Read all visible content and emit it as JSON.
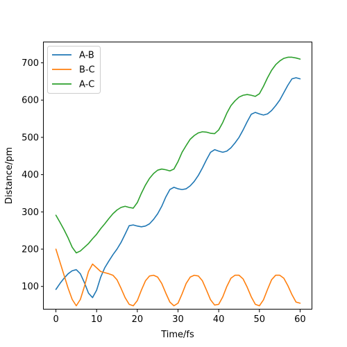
{
  "chart_data": {
    "type": "line",
    "title": "",
    "xlabel": "Time/fs",
    "ylabel": "Distance/pm",
    "xlim": [
      -3,
      63
    ],
    "ylim": [
      38,
      755
    ],
    "xticks": [
      0,
      10,
      20,
      30,
      40,
      50,
      60
    ],
    "yticks": [
      100,
      200,
      300,
      400,
      500,
      600,
      700
    ],
    "grid": false,
    "legend": "top-left",
    "x": [
      0,
      1,
      2,
      3,
      4,
      5,
      6,
      7,
      8,
      9,
      10,
      11,
      12,
      13,
      14,
      15,
      16,
      17,
      18,
      19,
      20,
      21,
      22,
      23,
      24,
      25,
      26,
      27,
      28,
      29,
      30,
      31,
      32,
      33,
      34,
      35,
      36,
      37,
      38,
      39,
      40,
      41,
      42,
      43,
      44,
      45,
      46,
      47,
      48,
      49,
      50,
      51,
      52,
      53,
      54,
      55,
      56,
      57,
      58,
      59,
      60
    ],
    "series": [
      {
        "name": "A-B",
        "color": "#1f77b4",
        "values": [
          92,
          108,
          122,
          134,
          142,
          145,
          134,
          110,
          82,
          70,
          90,
          125,
          150,
          168,
          185,
          200,
          218,
          240,
          263,
          265,
          262,
          260,
          262,
          268,
          280,
          295,
          315,
          340,
          360,
          366,
          362,
          360,
          362,
          370,
          382,
          398,
          418,
          440,
          460,
          467,
          463,
          460,
          463,
          472,
          485,
          500,
          520,
          542,
          562,
          567,
          563,
          560,
          563,
          572,
          585,
          600,
          620,
          640,
          657,
          660,
          657
        ]
      },
      {
        "name": "B-C",
        "color": "#ff7f0e",
        "values": [
          200,
          165,
          130,
          95,
          65,
          48,
          65,
          100,
          140,
          160,
          150,
          140,
          137,
          134,
          130,
          118,
          95,
          70,
          52,
          48,
          62,
          90,
          115,
          128,
          130,
          125,
          108,
          82,
          58,
          48,
          55,
          80,
          108,
          125,
          130,
          128,
          115,
          90,
          64,
          50,
          52,
          72,
          100,
          122,
          130,
          130,
          120,
          98,
          72,
          52,
          48,
          64,
          92,
          118,
          130,
          130,
          122,
          102,
          78,
          58,
          55
        ]
      },
      {
        "name": "A-C",
        "color": "#2ca02c",
        "values": [
          291,
          272,
          252,
          230,
          205,
          190,
          195,
          205,
          215,
          228,
          240,
          255,
          268,
          282,
          295,
          305,
          312,
          315,
          312,
          310,
          325,
          350,
          372,
          390,
          403,
          412,
          415,
          413,
          410,
          415,
          435,
          460,
          478,
          495,
          505,
          512,
          515,
          514,
          511,
          510,
          520,
          540,
          565,
          585,
          598,
          608,
          613,
          615,
          613,
          610,
          617,
          637,
          660,
          680,
          695,
          705,
          712,
          715,
          715,
          713,
          710
        ]
      }
    ]
  }
}
